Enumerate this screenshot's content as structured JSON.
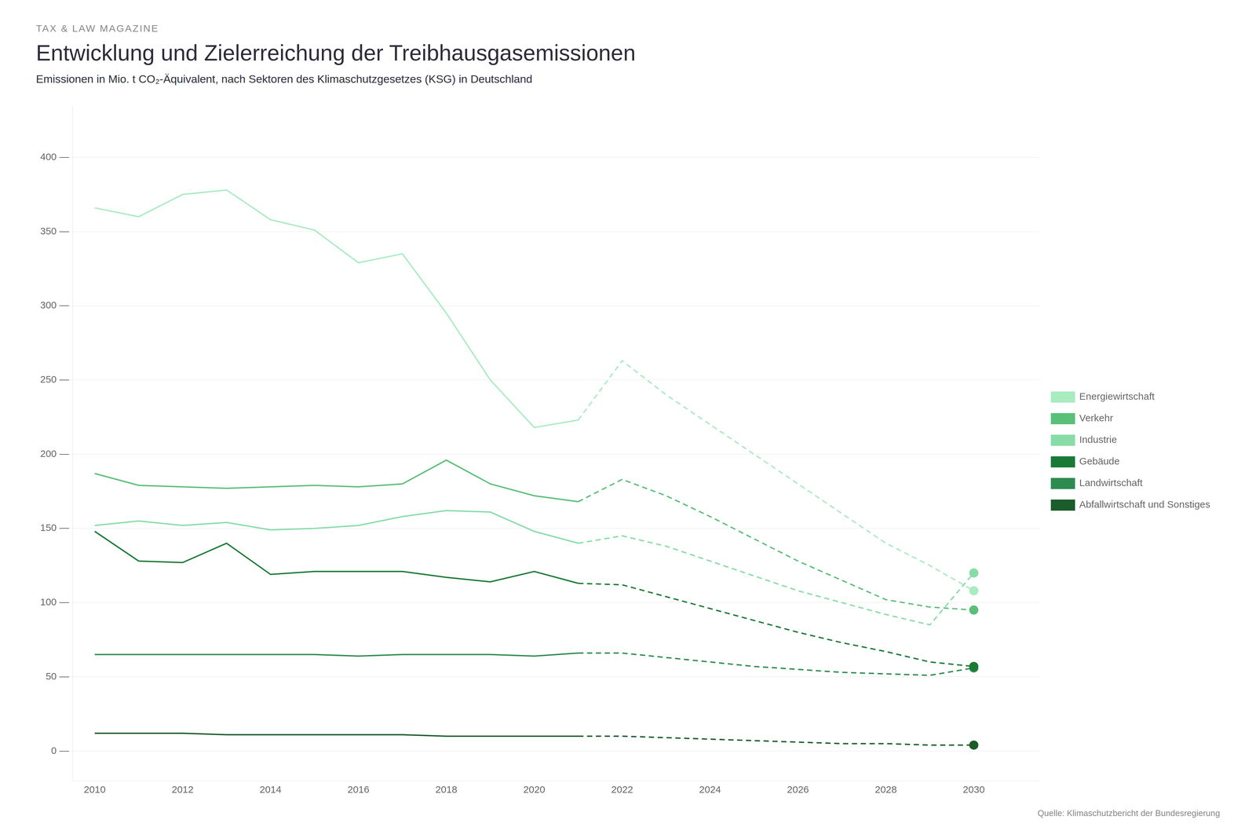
{
  "chart_data": {
    "type": "line",
    "title": "Entwicklung und Zielerreichung der Treibhausgasemissionen",
    "subtitle": "TAX & LAW MAGAZINE",
    "description": "Emissionen in Mio. t CO₂-Äquivalent, nach Sektoren des Klimaschutzgesetzes (KSG) in Deutschland",
    "source": "Quelle: Klimaschutzbericht der Bundesregierung",
    "xlim": [
      2009.5,
      2031.5
    ],
    "xticks": [
      2010,
      2012,
      2014,
      2016,
      2018,
      2020,
      2022,
      2024,
      2026,
      2028,
      2030
    ],
    "ylim": [
      -20,
      435
    ],
    "yticks": [
      {
        "value": 0,
        "label": "0 —"
      },
      {
        "value": 50,
        "label": "50 —"
      },
      {
        "value": 100,
        "label": "100 —"
      },
      {
        "value": 150,
        "label": "150 —"
      },
      {
        "value": 200,
        "label": "200 —"
      },
      {
        "value": 250,
        "label": "250 —"
      },
      {
        "value": 300,
        "label": "300 —"
      },
      {
        "value": 350,
        "label": "350 —"
      },
      {
        "value": 400,
        "label": "400 —"
      }
    ],
    "grid": "y",
    "legend": "right",
    "series": [
      {
        "name": "Energiewirtschaft",
        "color": "#a8ecc0",
        "line_style": "solid",
        "x": [
          2010,
          2011,
          2012,
          2013,
          2014,
          2015,
          2016,
          2017,
          2018,
          2019,
          2020,
          2021
        ],
        "values": [
          366,
          360,
          375,
          378,
          358,
          351,
          329,
          335,
          295,
          250,
          218,
          223
        ]
      },
      {
        "name": "Energiewirtschaft",
        "color": "#a8ecc0",
        "line_style": "dashed",
        "marker": "end_circle",
        "x": [
          2021,
          2022,
          2023,
          2024,
          2025,
          2026,
          2027,
          2028,
          2029,
          2030
        ],
        "values": [
          223,
          263,
          240,
          220,
          200,
          180,
          160,
          140,
          125,
          108
        ]
      },
      {
        "name": "Verkehr",
        "color": "#5abf78",
        "line_style": "solid",
        "x": [
          2010,
          2011,
          2012,
          2013,
          2014,
          2015,
          2016,
          2017,
          2018,
          2019,
          2020,
          2021
        ],
        "values": [
          187,
          179,
          178,
          177,
          178,
          179,
          178,
          180,
          196,
          180,
          172,
          168
        ]
      },
      {
        "name": "Verkehr",
        "color": "#5abf78",
        "line_style": "dashed",
        "marker": "end_circle",
        "x": [
          2021,
          2022,
          2023,
          2024,
          2025,
          2026,
          2027,
          2028,
          2029,
          2030
        ],
        "values": [
          168,
          183,
          172,
          158,
          143,
          128,
          115,
          102,
          97,
          95
        ]
      },
      {
        "name": "Industrie",
        "color": "#88dca8",
        "line_style": "solid",
        "x": [
          2010,
          2011,
          2012,
          2013,
          2014,
          2015,
          2016,
          2017,
          2018,
          2019,
          2020,
          2021
        ],
        "values": [
          152,
          155,
          152,
          154,
          149,
          150,
          152,
          158,
          162,
          161,
          148,
          140
        ]
      },
      {
        "name": "Industrie",
        "color": "#88dca8",
        "line_style": "dashed",
        "marker": "end_circle",
        "x": [
          2021,
          2022,
          2023,
          2024,
          2025,
          2026,
          2027,
          2028,
          2029,
          2030
        ],
        "values": [
          140,
          145,
          138,
          128,
          118,
          108,
          100,
          92,
          85,
          120
        ]
      },
      {
        "name": "Gebäude",
        "color": "#1a7a35",
        "line_style": "solid",
        "x": [
          2010,
          2011,
          2012,
          2013,
          2014,
          2015,
          2016,
          2017,
          2018,
          2019,
          2020,
          2021
        ],
        "values": [
          148,
          128,
          127,
          140,
          119,
          121,
          121,
          121,
          117,
          114,
          121,
          113
        ]
      },
      {
        "name": "Gebäude",
        "color": "#1a7a35",
        "line_style": "dashed",
        "marker": "end_circle",
        "x": [
          2021,
          2022,
          2023,
          2024,
          2025,
          2026,
          2027,
          2028,
          2029,
          2030
        ],
        "values": [
          113,
          112,
          104,
          96,
          88,
          80,
          73,
          67,
          60,
          57
        ]
      },
      {
        "name": "Landwirtschaft",
        "color": "#2e8b50",
        "line_style": "solid",
        "x": [
          2010,
          2011,
          2012,
          2013,
          2014,
          2015,
          2016,
          2017,
          2018,
          2019,
          2020,
          2021
        ],
        "values": [
          65,
          65,
          65,
          65,
          65,
          65,
          64,
          65,
          65,
          65,
          64,
          66
        ]
      },
      {
        "name": "Landwirtschaft",
        "color": "#2e8b50",
        "line_style": "dashed",
        "marker": "end_circle",
        "x": [
          2021,
          2022,
          2023,
          2024,
          2025,
          2026,
          2027,
          2028,
          2029,
          2030
        ],
        "values": [
          66,
          66,
          63,
          60,
          57,
          55,
          53,
          52,
          51,
          56
        ]
      },
      {
        "name": "Abfallwirtschaft und Sonstiges",
        "color": "#1a5c2a",
        "line_style": "solid",
        "x": [
          2010,
          2011,
          2012,
          2013,
          2014,
          2015,
          2016,
          2017,
          2018,
          2019,
          2020,
          2021
        ],
        "values": [
          12,
          12,
          12,
          11,
          11,
          11,
          11,
          11,
          10,
          10,
          10,
          10
        ]
      },
      {
        "name": "Abfallwirtschaft und Sonstiges",
        "color": "#1a5c2a",
        "line_style": "dashed",
        "marker": "end_circle",
        "x": [
          2021,
          2022,
          2023,
          2024,
          2025,
          2026,
          2027,
          2028,
          2029,
          2030
        ],
        "values": [
          10,
          10,
          9,
          8,
          7,
          6,
          5,
          5,
          4,
          4
        ]
      }
    ]
  }
}
